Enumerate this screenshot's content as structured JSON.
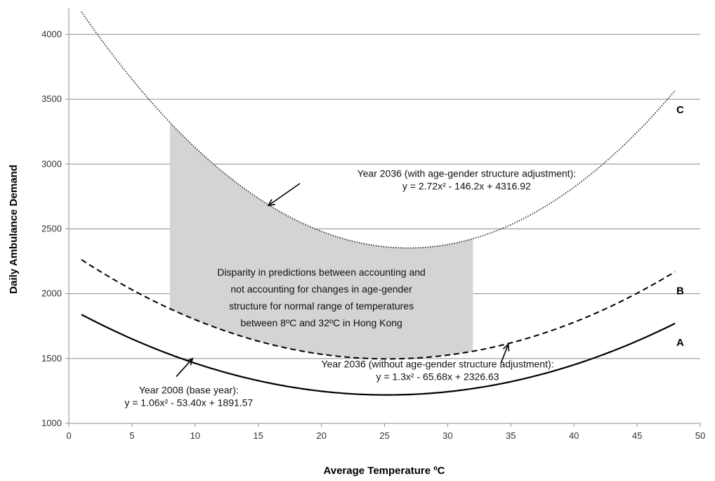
{
  "chart_data": {
    "type": "line",
    "xlabel": "Average Temperature  ºC",
    "ylabel": "Daily Ambulance Demand",
    "xlim": [
      0,
      50
    ],
    "ylim": [
      1000,
      4200
    ],
    "x_ticks": [
      0,
      5,
      10,
      15,
      20,
      25,
      30,
      35,
      40,
      45,
      50
    ],
    "y_ticks": [
      1000,
      1500,
      2000,
      2500,
      3000,
      3500,
      4000
    ],
    "grid": "horizontal",
    "x_range": [
      1,
      48
    ],
    "series": [
      {
        "name": "A",
        "style": "solid",
        "coefficients": [
          1.06,
          -53.4,
          1891.57
        ]
      },
      {
        "name": "B",
        "style": "dashed",
        "coefficients": [
          1.3,
          -65.68,
          2326.63
        ]
      },
      {
        "name": "C",
        "style": "dotted",
        "coefficients": [
          2.72,
          -146.2,
          4316.92
        ]
      }
    ],
    "shaded_region": {
      "x_from": 8,
      "x_to": 32,
      "between": [
        "B",
        "C"
      ],
      "color": "#d4d4d4",
      "text": [
        "Disparity in predictions between accounting and",
        "not accounting for changes in age-gender",
        "structure for normal range of temperatures",
        "between 8ºC and 32ºC in Hong Kong"
      ]
    },
    "annotations": [
      {
        "series": "C",
        "lines": [
          "Year 2036 (with age-gender structure adjustment):",
          "y = 2.72x² - 146.2x + 4316.92"
        ]
      },
      {
        "series": "B",
        "lines": [
          "Year 2036 (without age-gender structure adjustment):",
          "y = 1.3x² - 65.68x + 2326.63"
        ]
      },
      {
        "series": "A",
        "lines": [
          "Year 2008 (base year):",
          "y = 1.06x² - 53.40x + 1891.57"
        ]
      }
    ]
  }
}
